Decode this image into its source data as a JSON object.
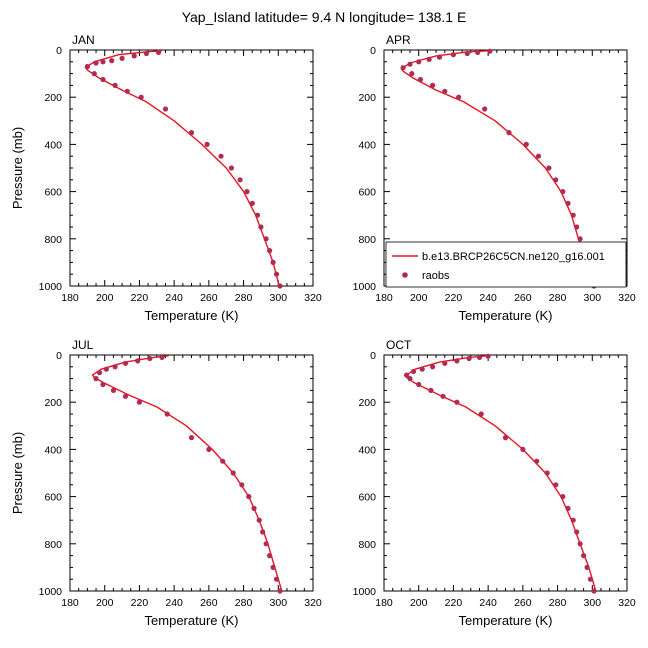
{
  "figure": {
    "title": "Yap_Island  latitude= 9.4 N longitude= 138.1 E"
  },
  "legend": {
    "model_label": "b.e13.BRCP26C5CN.ne120_g16.001",
    "obs_label": "raobs"
  },
  "colors": {
    "model_line": "#e8141e",
    "obs_marker": "#b02c54",
    "axis": "#000000",
    "background": "#ffffff"
  },
  "chart_data": [
    {
      "type": "line",
      "title": "JAN",
      "xlabel": "Temperature (K)",
      "ylabel": "Pressure (mb)",
      "xlim": [
        180,
        320
      ],
      "ylim": [
        0,
        1000
      ],
      "y_inverted": true,
      "xticks": [
        180,
        200,
        220,
        240,
        260,
        280,
        300,
        320
      ],
      "yticks": [
        0,
        200,
        400,
        600,
        800,
        1000
      ],
      "series": [
        {
          "name": "b.e13.BRCP26C5CN.ne120_g16.001",
          "kind": "line",
          "x": [
            300.5,
            297,
            292,
            287,
            280,
            270,
            256,
            240,
            224,
            210,
            197,
            190,
            189,
            194,
            208,
            224,
            233
          ],
          "y": [
            1000,
            900,
            800,
            700,
            600,
            500,
            400,
            300,
            220,
            170,
            120,
            85,
            75,
            50,
            20,
            8,
            3
          ]
        },
        {
          "name": "raobs",
          "kind": "points",
          "x": [
            301,
            299,
            297,
            295,
            293,
            290,
            288,
            285,
            282,
            278,
            273,
            267,
            259,
            250,
            235,
            221,
            213,
            206,
            199,
            194,
            190,
            195,
            199,
            204,
            210,
            217,
            224,
            231
          ],
          "y": [
            1000,
            950,
            900,
            850,
            800,
            750,
            700,
            650,
            600,
            550,
            500,
            450,
            400,
            350,
            250,
            200,
            175,
            150,
            125,
            100,
            70,
            55,
            50,
            45,
            35,
            25,
            15,
            10
          ]
        }
      ]
    },
    {
      "type": "line",
      "title": "APR",
      "xlabel": "Temperature (K)",
      "ylabel": "",
      "xlim": [
        180,
        320
      ],
      "ylim": [
        0,
        1000
      ],
      "y_inverted": true,
      "xticks": [
        180,
        200,
        220,
        240,
        260,
        280,
        300,
        320
      ],
      "yticks": [
        0,
        200,
        400,
        600,
        800,
        1000
      ],
      "series": [
        {
          "name": "b.e13.BRCP26C5CN.ne120_g16.001",
          "kind": "line",
          "x": [
            300.5,
            297,
            292,
            288,
            282,
            273,
            260,
            244,
            226,
            210,
            197,
            191,
            190,
            195,
            210,
            228,
            241
          ],
          "y": [
            1000,
            900,
            800,
            700,
            600,
            500,
            400,
            300,
            220,
            170,
            120,
            90,
            80,
            55,
            25,
            8,
            3
          ]
        },
        {
          "name": "raobs",
          "kind": "points",
          "x": [
            301,
            299,
            297,
            295,
            293,
            291,
            289,
            286,
            283,
            279,
            275,
            269,
            262,
            252,
            238,
            223,
            215,
            208,
            201,
            196,
            191,
            195,
            200,
            206,
            212,
            220,
            228,
            234,
            241
          ],
          "y": [
            1000,
            950,
            900,
            850,
            800,
            750,
            700,
            650,
            600,
            550,
            500,
            450,
            400,
            350,
            250,
            200,
            175,
            150,
            125,
            100,
            75,
            60,
            50,
            40,
            30,
            20,
            15,
            10,
            5
          ]
        }
      ]
    },
    {
      "type": "line",
      "title": "JUL",
      "xlabel": "Temperature (K)",
      "ylabel": "Pressure (mb)",
      "xlim": [
        180,
        320
      ],
      "ylim": [
        0,
        1000
      ],
      "y_inverted": true,
      "xticks": [
        180,
        200,
        220,
        240,
        260,
        280,
        300,
        320
      ],
      "yticks": [
        0,
        200,
        400,
        600,
        800,
        1000
      ],
      "series": [
        {
          "name": "b.e13.BRCP26C5CN.ne120_g16.001",
          "kind": "line",
          "x": [
            302,
            298,
            294,
            289,
            283,
            274,
            262,
            247,
            230,
            214,
            200,
            194,
            193,
            198,
            212,
            228,
            237
          ],
          "y": [
            1000,
            900,
            800,
            700,
            600,
            500,
            400,
            300,
            220,
            170,
            120,
            95,
            85,
            60,
            30,
            10,
            3
          ]
        },
        {
          "name": "raobs",
          "kind": "points",
          "x": [
            301,
            299,
            297,
            295,
            293,
            291,
            289,
            286,
            283,
            279,
            274,
            268,
            260,
            250,
            236,
            220,
            212,
            205,
            199,
            195,
            197,
            201,
            206,
            212,
            219,
            226,
            233
          ],
          "y": [
            1000,
            950,
            900,
            850,
            800,
            750,
            700,
            650,
            600,
            550,
            500,
            450,
            400,
            350,
            250,
            200,
            175,
            150,
            125,
            100,
            75,
            60,
            50,
            35,
            25,
            15,
            10
          ]
        }
      ]
    },
    {
      "type": "line",
      "title": "OCT",
      "xlabel": "Temperature (K)",
      "ylabel": "",
      "xlim": [
        180,
        320
      ],
      "ylim": [
        0,
        1000
      ],
      "y_inverted": true,
      "xticks": [
        180,
        200,
        220,
        240,
        260,
        280,
        300,
        320
      ],
      "yticks": [
        0,
        200,
        400,
        600,
        800,
        1000
      ],
      "series": [
        {
          "name": "b.e13.BRCP26C5CN.ne120_g16.001",
          "kind": "line",
          "x": [
            302,
            298,
            293,
            288,
            282,
            273,
            260,
            244,
            227,
            212,
            198,
            193,
            193,
            198,
            212,
            229,
            240
          ],
          "y": [
            1000,
            900,
            800,
            700,
            600,
            500,
            400,
            300,
            220,
            170,
            120,
            95,
            85,
            60,
            30,
            10,
            3
          ]
        },
        {
          "name": "raobs",
          "kind": "points",
          "x": [
            301,
            299,
            297,
            295,
            293,
            291,
            289,
            286,
            283,
            279,
            274,
            268,
            260,
            250,
            236,
            222,
            214,
            207,
            200,
            195,
            193,
            197,
            202,
            208,
            215,
            222,
            229,
            235,
            240
          ],
          "y": [
            1000,
            950,
            900,
            850,
            800,
            750,
            700,
            650,
            600,
            550,
            500,
            450,
            400,
            350,
            250,
            200,
            175,
            150,
            125,
            100,
            85,
            70,
            60,
            50,
            35,
            25,
            15,
            10,
            5
          ]
        }
      ]
    }
  ]
}
